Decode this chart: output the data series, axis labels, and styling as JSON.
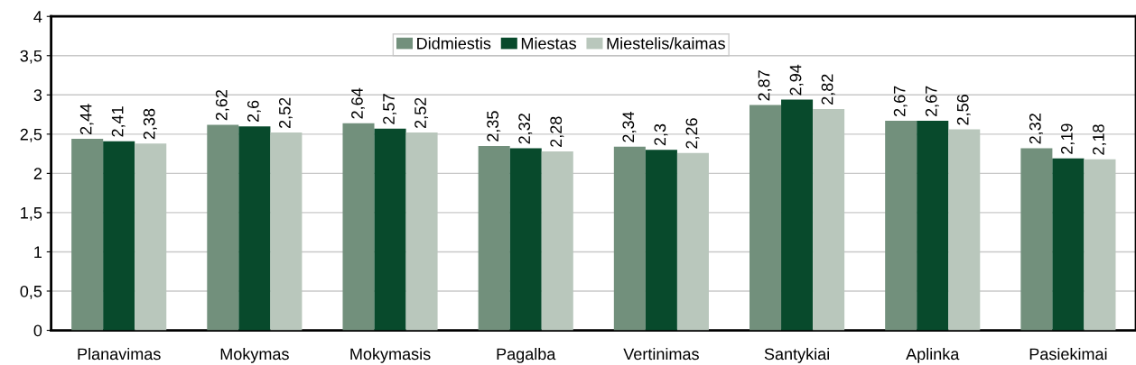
{
  "chart_data": {
    "type": "bar",
    "categories": [
      "Planavimas",
      "Mokymas",
      "Mokymasis",
      "Pagalba",
      "Vertinimas",
      "Santykiai",
      "Aplinka",
      "Pasiekimai"
    ],
    "series": [
      {
        "name": "Didmiestis",
        "color": "#72907c",
        "values": [
          2.44,
          2.62,
          2.64,
          2.35,
          2.34,
          2.87,
          2.67,
          2.32
        ],
        "value_labels": [
          "2,44",
          "2,62",
          "2,64",
          "2,35",
          "2,34",
          "2,87",
          "2,67",
          "2,32"
        ]
      },
      {
        "name": "Miestas",
        "color": "#084a2c",
        "values": [
          2.41,
          2.6,
          2.57,
          2.32,
          2.3,
          2.94,
          2.67,
          2.19
        ],
        "value_labels": [
          "2,41",
          "2,6",
          "2,57",
          "2,32",
          "2,3",
          "2,94",
          "2,67",
          "2,19"
        ]
      },
      {
        "name": "Miestelis/kaimas",
        "color": "#b9c7bc",
        "values": [
          2.38,
          2.52,
          2.52,
          2.28,
          2.26,
          2.82,
          2.56,
          2.18
        ],
        "value_labels": [
          "2,38",
          "2,52",
          "2,52",
          "2,28",
          "2,26",
          "2,82",
          "2,56",
          "2,18"
        ]
      }
    ],
    "ylim": [
      0,
      4
    ],
    "yticks": [
      0,
      {
        "value": 0.5,
        "label": "0,5"
      },
      1,
      {
        "value": 1.5,
        "label": "1,5"
      },
      2,
      {
        "value": 2.5,
        "label": "2,5"
      },
      3,
      {
        "value": 3.5,
        "label": "3,5"
      },
      4
    ],
    "grid": "y",
    "legend": "top"
  }
}
